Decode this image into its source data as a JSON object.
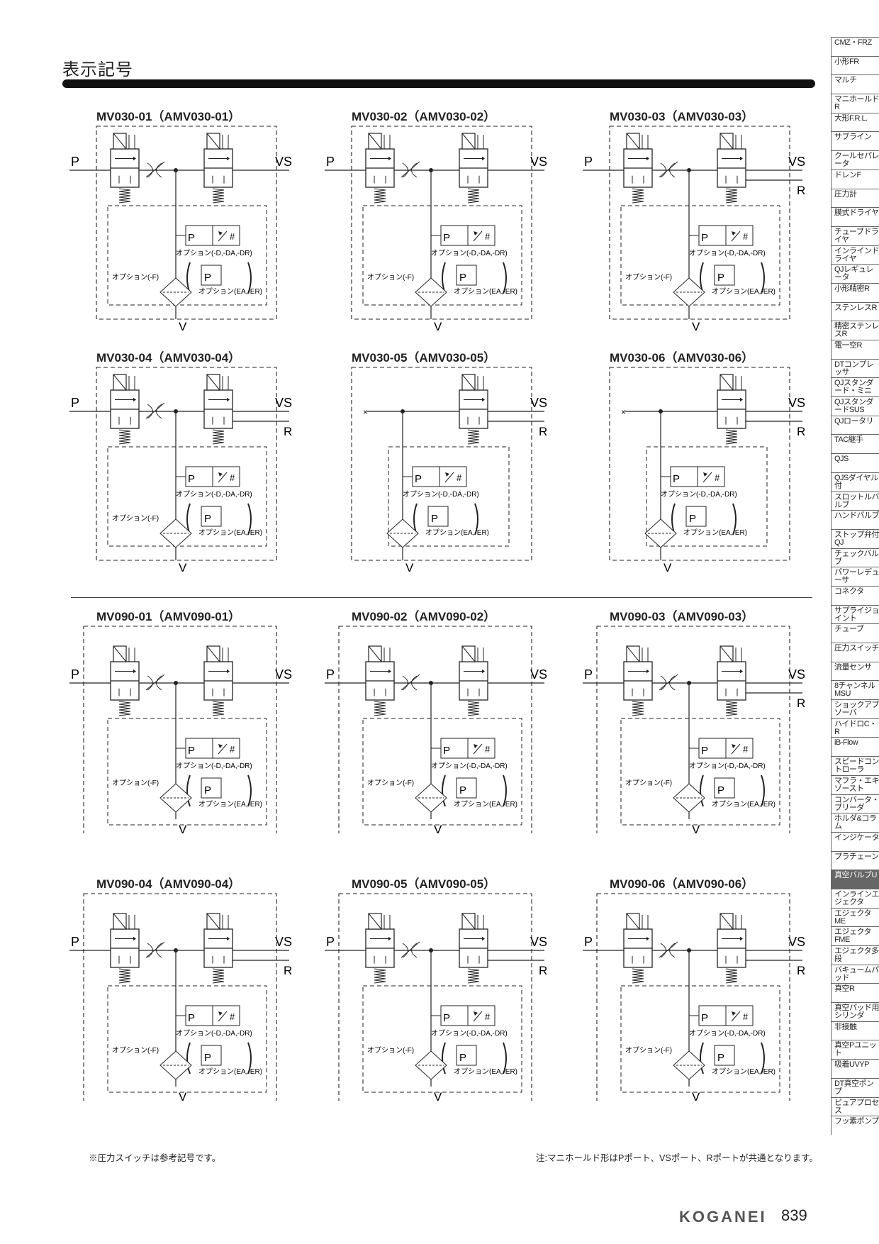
{
  "page": {
    "title": "表示記号",
    "note_left": "※圧力スイッチは参考記号です。",
    "note_right": "注:マニホールド形はPポート、VSポート、Rポートが共通となります。",
    "brand": "KOGANEI",
    "page_number": "839"
  },
  "labels": {
    "P": "P",
    "VS": "VS",
    "R": "R",
    "V": "V",
    "opt_d": "オプション(-D,-DA,-DR)",
    "opt_f": "オプション(-F)",
    "opt_ea": "オプション(EA,-ER)"
  },
  "diagrams": [
    {
      "model": "MV030-01（AMV030-01）",
      "has_r": false,
      "has_p": true
    },
    {
      "model": "MV030-02（AMV030-02）",
      "has_r": false,
      "has_p": true
    },
    {
      "model": "MV030-03（AMV030-03）",
      "has_r": true,
      "has_p": true
    },
    {
      "model": "MV030-04（AMV030-04）",
      "has_r": true,
      "has_p": true
    },
    {
      "model": "MV030-05（AMV030-05）",
      "has_r": true,
      "has_p": false
    },
    {
      "model": "MV030-06（AMV030-06）",
      "has_r": true,
      "has_p": false
    },
    {
      "model": "MV090-01（AMV090-01）",
      "has_r": false,
      "has_p": true
    },
    {
      "model": "MV090-02（AMV090-02）",
      "has_r": false,
      "has_p": true
    },
    {
      "model": "MV090-03（AMV090-03）",
      "has_r": true,
      "has_p": true
    },
    {
      "model": "MV090-04（AMV090-04）",
      "has_r": true,
      "has_p": true
    },
    {
      "model": "MV090-05（AMV090-05）",
      "has_r": true,
      "has_p": true
    },
    {
      "model": "MV090-06（AMV090-06）",
      "has_r": true,
      "has_p": true
    }
  ],
  "side_tabs": [
    {
      "label": "CMZ・FRZ"
    },
    {
      "label": "小形FR"
    },
    {
      "label": "マルチ"
    },
    {
      "label": "マニホールドR"
    },
    {
      "label": "大形F.R.L."
    },
    {
      "label": "サブライン"
    },
    {
      "label": "クールセパレータ"
    },
    {
      "label": "ドレンF"
    },
    {
      "label": "圧力計"
    },
    {
      "label": "膜式ドライヤ"
    },
    {
      "label": "チューブドライヤ"
    },
    {
      "label": "インラインドライヤ"
    },
    {
      "label": "QJレギュレータ"
    },
    {
      "label": "小形精密R"
    },
    {
      "label": "ステンレスR"
    },
    {
      "label": "精密ステンレスR"
    },
    {
      "label": "電一空R"
    },
    {
      "label": "DTコンプレッサ"
    },
    {
      "label": "QJスタンダード・ミニ"
    },
    {
      "label": "QJスタンダードSUS"
    },
    {
      "label": "QJロータリ"
    },
    {
      "label": "TAC継手"
    },
    {
      "label": "QJS"
    },
    {
      "label": "QJSダイヤル付"
    },
    {
      "label": "スロットルバルブ"
    },
    {
      "label": "ハンドバルブ"
    },
    {
      "label": "ストップ弁付QJ"
    },
    {
      "label": "チェックバルブ"
    },
    {
      "label": "パワーレデューサ"
    },
    {
      "label": "コネクタ"
    },
    {
      "label": "サプライジョイント"
    },
    {
      "label": "チューブ"
    },
    {
      "label": "圧力スイッチ"
    },
    {
      "label": "流量センサ"
    },
    {
      "label": "8チャンネルMSU"
    },
    {
      "label": "ショックアブソーバ"
    },
    {
      "label": "ハイドロC・R"
    },
    {
      "label": "iB-Flow"
    },
    {
      "label": "スピードコントローラ"
    },
    {
      "label": "マフラ・エキゾースト"
    },
    {
      "label": "コンバータ・ブリーダ"
    },
    {
      "label": "ホルダ&コラム"
    },
    {
      "label": "インジケータ"
    },
    {
      "label": "プラチェーン"
    },
    {
      "label": "真空バルブU",
      "active": true
    },
    {
      "label": "インラインエジェクタ"
    },
    {
      "label": "エジェクタME"
    },
    {
      "label": "エジェクタFME"
    },
    {
      "label": "エジェクタ多段"
    },
    {
      "label": "バキュームパッド"
    },
    {
      "label": "真空R"
    },
    {
      "label": "真空パッド用シリンダ"
    },
    {
      "label": "非接触"
    },
    {
      "label": "真空Pユニット"
    },
    {
      "label": "吸着UVYP"
    },
    {
      "label": "DT真空ポンプ"
    },
    {
      "label": "ピュアプロセス"
    },
    {
      "label": "フッ素ポンプ"
    }
  ]
}
